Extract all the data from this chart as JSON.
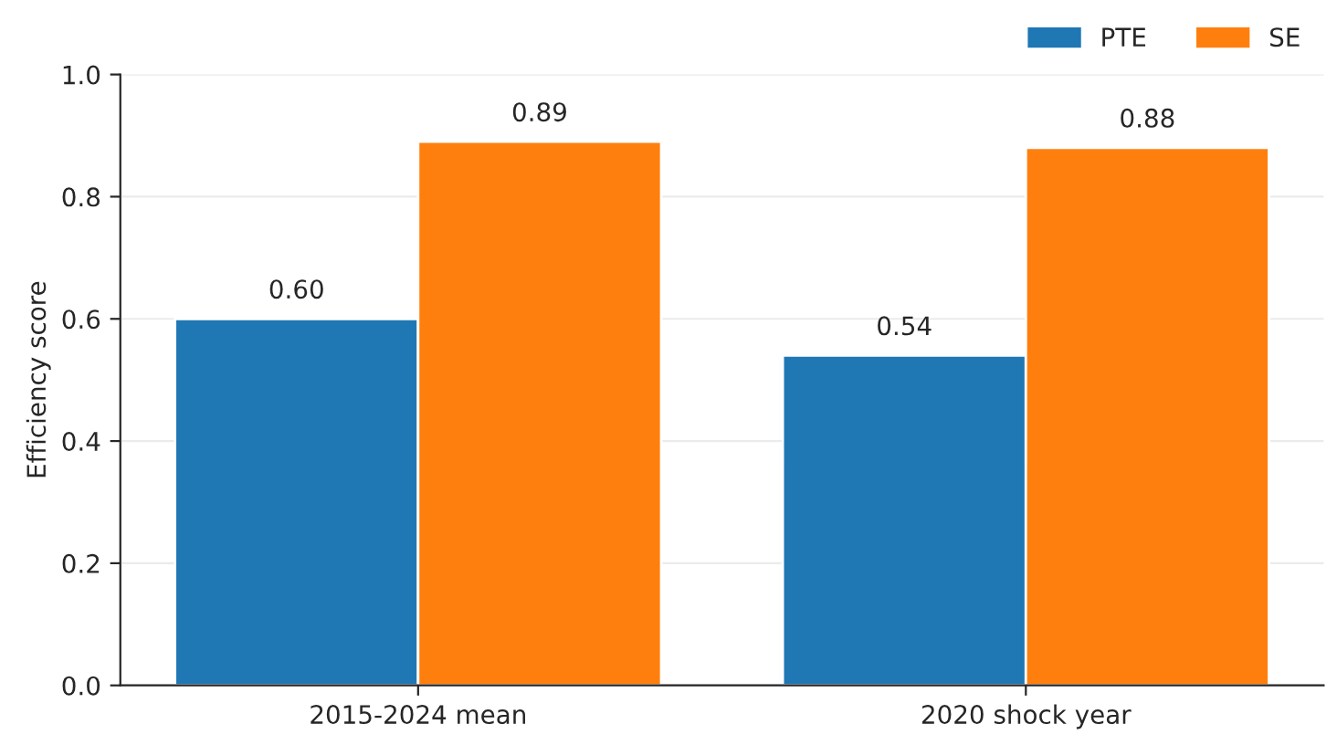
{
  "chart_data": {
    "type": "bar",
    "ylabel": "Efficiency score",
    "categories": [
      "2015-2024 mean",
      "2020 shock year"
    ],
    "series": [
      {
        "name": "PTE",
        "color": "#1f77b4",
        "values": [
          0.6,
          0.54
        ],
        "value_labels": [
          "0.60",
          "0.54"
        ]
      },
      {
        "name": "SE",
        "color": "#ff7f0e",
        "values": [
          0.89,
          0.88
        ],
        "value_labels": [
          "0.89",
          "0.88"
        ]
      }
    ],
    "ylim": [
      0,
      1
    ],
    "yticks": [
      {
        "value": 0,
        "label": "0.0"
      },
      {
        "value": 0.2,
        "label": "0.2"
      },
      {
        "value": 0.4,
        "label": "0.4"
      },
      {
        "value": 0.6,
        "label": "0.6"
      },
      {
        "value": 0.8,
        "label": "0.8"
      },
      {
        "value": 1,
        "label": "1.0"
      }
    ],
    "grid": "y",
    "legend": "top right"
  }
}
